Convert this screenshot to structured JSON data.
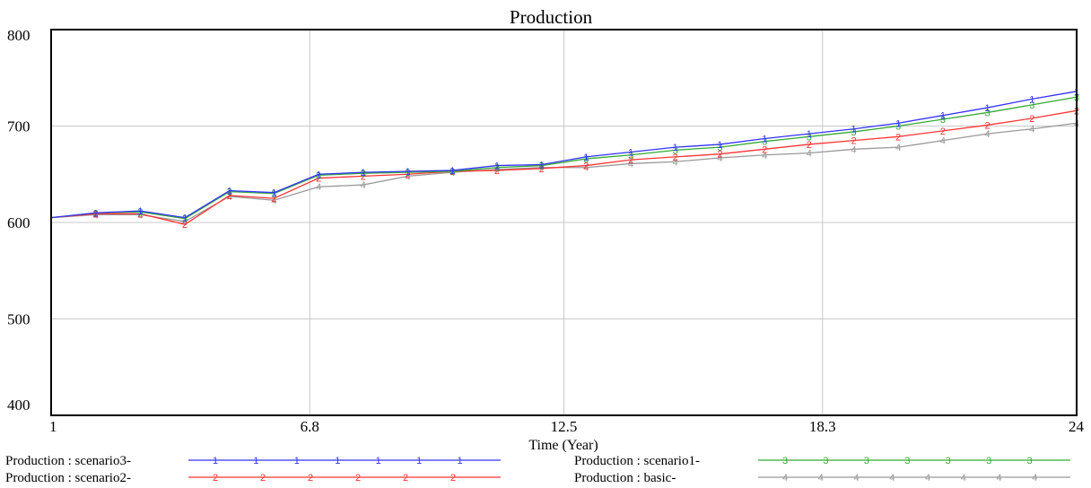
{
  "chart_data": {
    "type": "line",
    "title": "Production",
    "xlabel": "Time (Year)",
    "ylabel": "",
    "xlim": [
      1,
      24
    ],
    "ylim": [
      400,
      800
    ],
    "x_ticks": [
      "1",
      "6.8",
      "12.5",
      "18.3",
      "24"
    ],
    "y_ticks": [
      "400",
      "500",
      "600",
      "700",
      "800"
    ],
    "grid": true,
    "legend_position": "bottom",
    "x": [
      1,
      2,
      3,
      4,
      5,
      6,
      7,
      8,
      9,
      10,
      11,
      12,
      13,
      14,
      15,
      16,
      17,
      18,
      19,
      20,
      21,
      22,
      23,
      24
    ],
    "series": [
      {
        "name": "Production : scenario3-",
        "marker": "1",
        "color": "#3333ff",
        "values": [
          605,
          610,
          612,
          605,
          633,
          631,
          650,
          652,
          653,
          654,
          659,
          660,
          668,
          673,
          678,
          681,
          687,
          692,
          697,
          703,
          711,
          719,
          728,
          736
        ]
      },
      {
        "name": "Production : scenario2-",
        "marker": "2",
        "color": "#ff3333",
        "values": [
          605,
          609,
          609,
          598,
          628,
          625,
          646,
          648,
          650,
          653,
          654,
          656,
          659,
          665,
          668,
          671,
          676,
          681,
          685,
          689,
          695,
          701,
          708,
          716
        ]
      },
      {
        "name": "Production : scenario1-",
        "marker": "3",
        "color": "#33aa33",
        "values": [
          605,
          610,
          611,
          604,
          632,
          630,
          649,
          651,
          652,
          653,
          657,
          659,
          666,
          670,
          675,
          678,
          684,
          689,
          694,
          700,
          707,
          714,
          722,
          730
        ]
      },
      {
        "name": "Production : basic-",
        "marker": "4",
        "color": "#999999",
        "values": [
          605,
          608,
          608,
          601,
          627,
          623,
          637,
          639,
          648,
          652,
          655,
          657,
          657,
          661,
          663,
          667,
          670,
          672,
          676,
          678,
          685,
          692,
          697,
          703
        ]
      }
    ]
  }
}
